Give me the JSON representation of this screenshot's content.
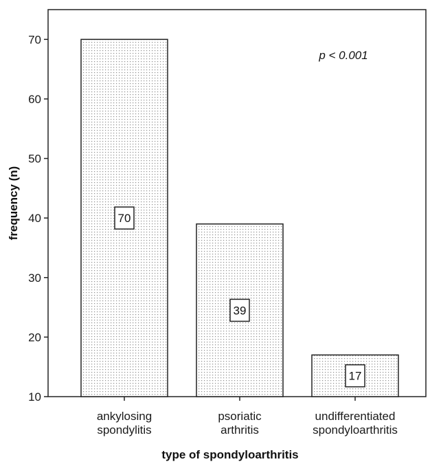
{
  "chart_data": {
    "type": "bar",
    "categories": [
      [
        "ankylosing",
        "spondylitis"
      ],
      [
        "psoriatic",
        "arthritis"
      ],
      [
        "undifferentiated",
        "spondyloarthritis"
      ]
    ],
    "values": [
      70,
      39,
      17
    ],
    "data_labels": [
      "70",
      "39",
      "17"
    ],
    "xlabel": "type of spondyloarthritis",
    "ylabel": "frequency (n)",
    "ylim": [
      10,
      75
    ],
    "yticks": [
      10,
      20,
      30,
      40,
      50,
      60,
      70
    ],
    "annotation": "p < 0.001",
    "grid": false,
    "legend": "none",
    "bar_fill": "dotted",
    "colors": {
      "bar_fill": "#ffffff",
      "dots": "#8c8c8c",
      "outline": "#222222",
      "axis": "#222222",
      "text": "#1a1a1a"
    }
  }
}
